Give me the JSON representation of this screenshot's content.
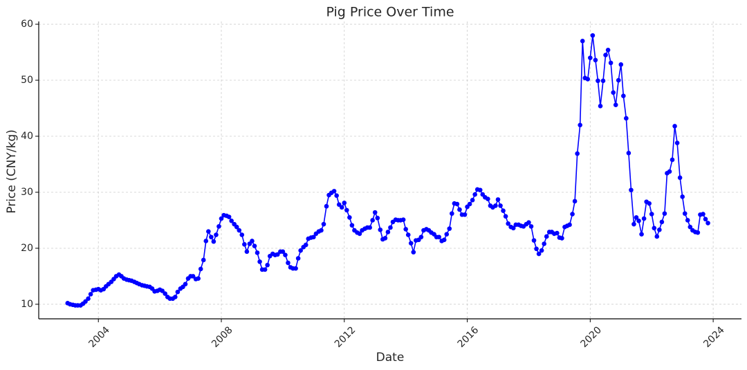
{
  "chart_data": {
    "type": "line",
    "title": "Pig Price Over Time",
    "x_label": "Date",
    "y_label": "Price (CNY/kg)",
    "xlim": [
      2002.06,
      2024.92
    ],
    "ylim": [
      7.4,
      60.5
    ],
    "xticks": [
      2004,
      2008,
      2012,
      2016,
      2020,
      2024
    ],
    "yticks": [
      10,
      20,
      30,
      40,
      50,
      60
    ],
    "grid": true,
    "x": [
      2003.0,
      2003.08,
      2003.17,
      2003.25,
      2003.33,
      2003.42,
      2003.5,
      2003.58,
      2003.67,
      2003.75,
      2003.83,
      2003.92,
      2004.0,
      2004.08,
      2004.17,
      2004.25,
      2004.33,
      2004.42,
      2004.5,
      2004.58,
      2004.67,
      2004.75,
      2004.83,
      2004.92,
      2005.0,
      2005.08,
      2005.17,
      2005.25,
      2005.33,
      2005.42,
      2005.5,
      2005.58,
      2005.67,
      2005.75,
      2005.83,
      2005.92,
      2006.0,
      2006.08,
      2006.17,
      2006.25,
      2006.33,
      2006.42,
      2006.5,
      2006.58,
      2006.67,
      2006.75,
      2006.83,
      2006.92,
      2007.0,
      2007.08,
      2007.17,
      2007.25,
      2007.33,
      2007.42,
      2007.5,
      2007.58,
      2007.67,
      2007.75,
      2007.83,
      2007.92,
      2008.0,
      2008.08,
      2008.17,
      2008.25,
      2008.33,
      2008.42,
      2008.5,
      2008.58,
      2008.67,
      2008.75,
      2008.83,
      2008.92,
      2009.0,
      2009.08,
      2009.17,
      2009.25,
      2009.33,
      2009.42,
      2009.5,
      2009.58,
      2009.67,
      2009.75,
      2009.83,
      2009.92,
      2010.0,
      2010.08,
      2010.17,
      2010.25,
      2010.33,
      2010.42,
      2010.5,
      2010.58,
      2010.67,
      2010.75,
      2010.83,
      2010.92,
      2011.0,
      2011.08,
      2011.17,
      2011.25,
      2011.33,
      2011.42,
      2011.5,
      2011.58,
      2011.67,
      2011.75,
      2011.83,
      2011.92,
      2012.0,
      2012.08,
      2012.17,
      2012.25,
      2012.33,
      2012.42,
      2012.5,
      2012.58,
      2012.67,
      2012.75,
      2012.83,
      2012.92,
      2013.0,
      2013.08,
      2013.17,
      2013.25,
      2013.33,
      2013.42,
      2013.5,
      2013.58,
      2013.67,
      2013.75,
      2013.83,
      2013.92,
      2014.0,
      2014.08,
      2014.17,
      2014.25,
      2014.33,
      2014.42,
      2014.5,
      2014.58,
      2014.67,
      2014.75,
      2014.83,
      2014.92,
      2015.0,
      2015.08,
      2015.17,
      2015.25,
      2015.33,
      2015.42,
      2015.5,
      2015.58,
      2015.67,
      2015.75,
      2015.83,
      2015.92,
      2016.0,
      2016.08,
      2016.17,
      2016.25,
      2016.33,
      2016.42,
      2016.5,
      2016.58,
      2016.67,
      2016.75,
      2016.83,
      2016.92,
      2017.0,
      2017.08,
      2017.17,
      2017.25,
      2017.33,
      2017.42,
      2017.5,
      2017.58,
      2017.67,
      2017.75,
      2017.83,
      2017.92,
      2018.0,
      2018.08,
      2018.17,
      2018.25,
      2018.33,
      2018.42,
      2018.5,
      2018.58,
      2018.67,
      2018.75,
      2018.83,
      2018.92,
      2019.0,
      2019.08,
      2019.17,
      2019.25,
      2019.33,
      2019.42,
      2019.5,
      2019.58,
      2019.67,
      2019.75,
      2019.83,
      2019.92,
      2020.0,
      2020.08,
      2020.17,
      2020.25,
      2020.33,
      2020.42,
      2020.5,
      2020.58,
      2020.67,
      2020.75,
      2020.83,
      2020.92,
      2021.0,
      2021.08,
      2021.17,
      2021.25,
      2021.33,
      2021.42,
      2021.5,
      2021.58,
      2021.67,
      2021.75,
      2021.83,
      2021.92,
      2022.0,
      2022.08,
      2022.17,
      2022.25,
      2022.33,
      2022.42,
      2022.5,
      2022.58,
      2022.67,
      2022.75,
      2022.83,
      2022.92,
      2023.0,
      2023.08,
      2023.17,
      2023.25,
      2023.33,
      2023.42,
      2023.5,
      2023.58,
      2023.67,
      2023.75,
      2023.83
    ],
    "series": [
      {
        "color": "#0000ff",
        "values": [
          10.2,
          10.0,
          9.9,
          9.8,
          9.8,
          9.8,
          10.1,
          10.5,
          11.0,
          11.8,
          12.5,
          12.6,
          12.7,
          12.5,
          12.7,
          13.2,
          13.6,
          14.0,
          14.5,
          15.0,
          15.3,
          15.0,
          14.6,
          14.4,
          14.3,
          14.2,
          14.0,
          13.8,
          13.6,
          13.4,
          13.3,
          13.2,
          13.1,
          12.8,
          12.3,
          12.4,
          12.6,
          12.4,
          11.9,
          11.3,
          11.0,
          11.0,
          11.3,
          12.2,
          12.8,
          13.1,
          13.6,
          14.6,
          15.0,
          15.0,
          14.5,
          14.6,
          16.3,
          17.9,
          21.3,
          23.0,
          22.0,
          21.2,
          22.4,
          23.9,
          25.3,
          25.9,
          25.8,
          25.6,
          24.9,
          24.3,
          23.8,
          23.2,
          22.4,
          20.7,
          19.4,
          20.8,
          21.3,
          20.4,
          19.2,
          17.6,
          16.2,
          16.2,
          17.0,
          18.6,
          19.0,
          18.8,
          18.9,
          19.4,
          19.4,
          18.8,
          17.4,
          16.6,
          16.4,
          16.4,
          18.2,
          19.6,
          20.2,
          20.6,
          21.7,
          21.9,
          22.0,
          22.6,
          23.0,
          23.2,
          24.3,
          27.5,
          29.5,
          29.9,
          30.2,
          29.4,
          27.8,
          27.3,
          28.1,
          26.8,
          25.5,
          24.1,
          23.2,
          22.8,
          22.6,
          23.2,
          23.5,
          23.7,
          23.7,
          25.0,
          26.4,
          25.4,
          23.3,
          21.6,
          21.8,
          22.9,
          23.7,
          24.7,
          25.1,
          25.0,
          25.0,
          25.1,
          23.4,
          22.4,
          20.9,
          19.3,
          21.4,
          21.5,
          22.0,
          23.2,
          23.4,
          23.2,
          22.8,
          22.5,
          22.0,
          22.0,
          21.3,
          21.5,
          22.5,
          23.5,
          26.2,
          28.0,
          27.9,
          26.9,
          26.0,
          26.0,
          27.4,
          27.9,
          28.6,
          29.6,
          30.5,
          30.4,
          29.6,
          29.1,
          28.8,
          27.6,
          27.3,
          27.6,
          28.7,
          27.6,
          26.7,
          25.7,
          24.4,
          23.8,
          23.6,
          24.2,
          24.2,
          24.0,
          23.9,
          24.3,
          24.6,
          23.9,
          21.4,
          19.9,
          19.0,
          19.6,
          20.8,
          22.1,
          22.9,
          22.9,
          22.6,
          22.7,
          21.9,
          21.8,
          23.8,
          24.0,
          24.2,
          26.1,
          28.4,
          36.9,
          42.0,
          57.0,
          50.4,
          50.2,
          54.0,
          58.0,
          53.6,
          49.9,
          45.4,
          49.9,
          54.5,
          55.4,
          53.1,
          47.8,
          45.6,
          50.0,
          52.8,
          47.2,
          43.2,
          37.0,
          30.4,
          24.3,
          25.5,
          24.9,
          22.5,
          25.3,
          28.3,
          28.0,
          26.1,
          23.6,
          22.1,
          23.3,
          24.7,
          26.2,
          33.4,
          33.7,
          35.8,
          41.8,
          38.8,
          32.6,
          29.2,
          26.2,
          25.0,
          23.8,
          23.2,
          22.9,
          22.8,
          26.0,
          26.1,
          25.2,
          24.5
        ]
      }
    ]
  }
}
